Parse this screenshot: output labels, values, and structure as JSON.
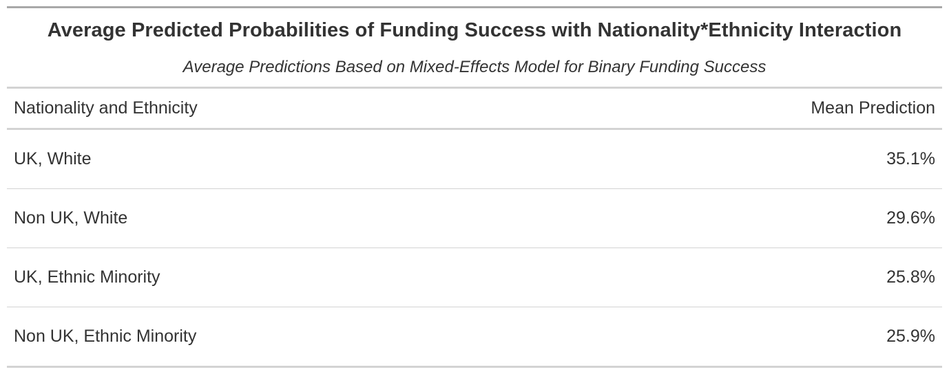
{
  "chart_data": {
    "type": "table",
    "title": "Average Predicted Probabilities of Funding Success with Nationality*Ethnicity Interaction",
    "subtitle": "Average Predictions Based on Mixed-Effects Model for Binary Funding Success",
    "columns": [
      "Nationality and Ethnicity",
      "Mean Prediction"
    ],
    "rows": [
      {
        "group": "UK, White",
        "mean_prediction": "35.1%"
      },
      {
        "group": "Non UK, White",
        "mean_prediction": "29.6%"
      },
      {
        "group": "UK, Ethnic Minority",
        "mean_prediction": "25.8%"
      },
      {
        "group": "Non UK, Ethnic Minority",
        "mean_prediction": "25.9%"
      }
    ]
  }
}
